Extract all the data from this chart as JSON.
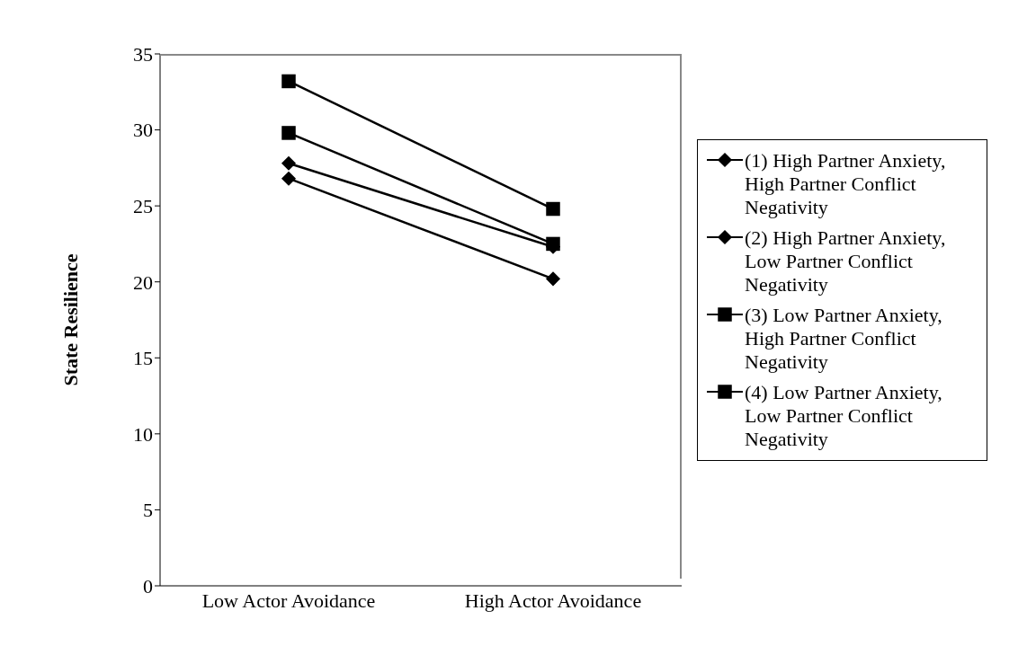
{
  "chart_data": {
    "type": "line",
    "ylabel": "State Resilience",
    "categories": [
      "Low Actor Avoidance",
      "High Actor Avoidance"
    ],
    "series": [
      {
        "name": "(1) High Partner Anxiety, High Partner Conflict Negativity",
        "color": "#000000",
        "marker": "diamond",
        "values": [
          27.8,
          22.3
        ]
      },
      {
        "name": "(2) High Partner Anxiety, Low Partner Conflict Negativity",
        "color": "#000000",
        "marker": "diamond",
        "values": [
          26.8,
          20.2
        ]
      },
      {
        "name": "(3) Low Partner Anxiety, High Partner Conflict Negativity",
        "color": "#000000",
        "marker": "square",
        "values": [
          33.2,
          24.8
        ]
      },
      {
        "name": "(4) Low Partner Anxiety, Low Partner Conflict Negativity",
        "color": "#000000",
        "marker": "square",
        "values": [
          29.8,
          22.5
        ]
      }
    ],
    "ylim": [
      0,
      35
    ],
    "yticks": [
      0,
      5,
      10,
      15,
      20,
      25,
      30,
      35
    ],
    "grid": false,
    "legend": "right",
    "line_style": "solid"
  }
}
